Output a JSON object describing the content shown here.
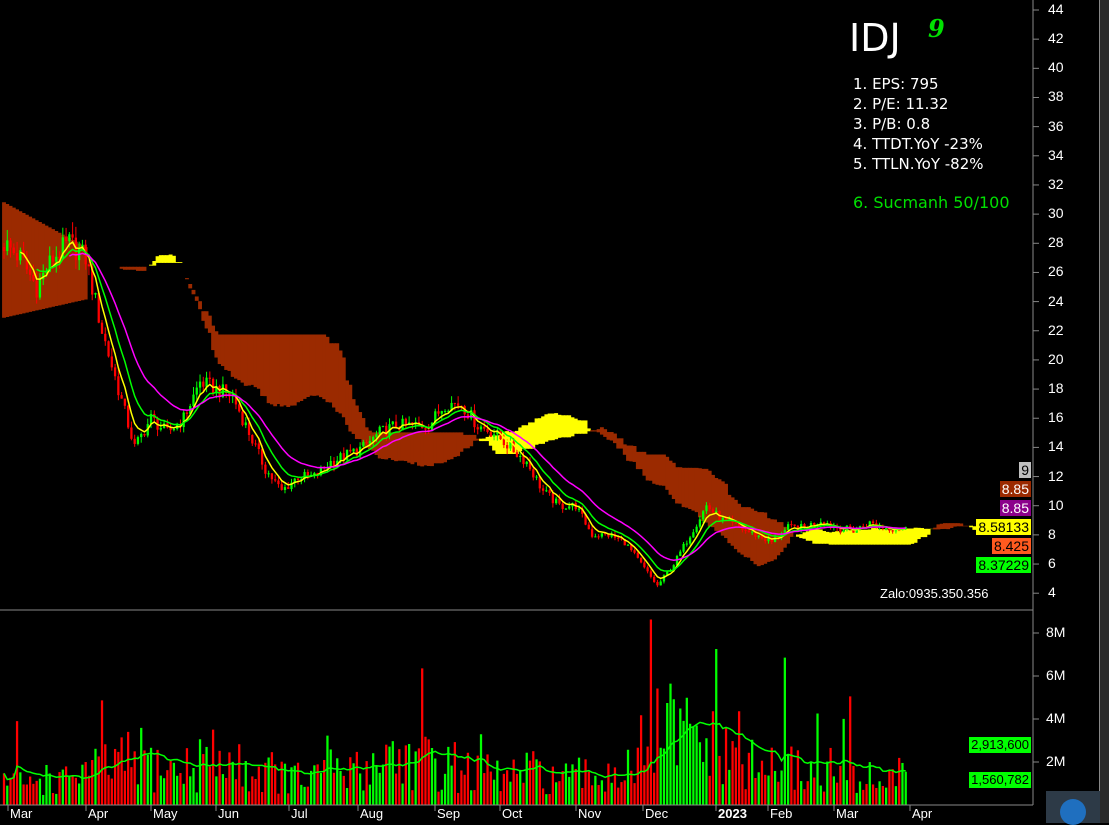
{
  "header": {
    "symbol": "IDJ",
    "symbol_badge": "9",
    "fundamentals": [
      "1. EPS: 795",
      "2. P/E: 11.32",
      "3. P/B: 0.8",
      "4. TTDT.YoY -23%",
      "5. TTLN.YoY -82%"
    ],
    "strength": "6. Sucmanh 50/100"
  },
  "watermark": "Zalo:0935.350.356",
  "colors": {
    "up": "#00ff00",
    "down": "#ff0000",
    "cloud_bear": "#9b2a00",
    "cloud_bull": "#ffff00",
    "ma_fast": "#ffff00",
    "ma_mid": "#00ff00",
    "ma_slow": "#ff00ff",
    "volume_ma": "#00ff00"
  },
  "price_axis": {
    "labels": [
      "44",
      "42",
      "40",
      "38",
      "36",
      "34",
      "32",
      "30",
      "28",
      "26",
      "24",
      "22",
      "20",
      "18",
      "16",
      "14",
      "12",
      "10",
      "8",
      "6",
      "4"
    ]
  },
  "volume_axis": {
    "labels": [
      "8M",
      "6M",
      "4M",
      "2M"
    ]
  },
  "price_tags": [
    {
      "value": "9",
      "bg": "#c0c0c0",
      "fg": "#000000"
    },
    {
      "value": "8.85",
      "bg": "#9b2a00",
      "fg": "#ffffff"
    },
    {
      "value": "8.85",
      "bg": "#8b008b",
      "fg": "#ffffff"
    },
    {
      "value": "8.58133",
      "bg": "#ffff00",
      "fg": "#000000"
    },
    {
      "value": "8.425",
      "bg": "#ff5a1f",
      "fg": "#000000"
    },
    {
      "value": "8.37229",
      "bg": "#00ff00",
      "fg": "#000000"
    }
  ],
  "volume_tags": [
    "2,913,600",
    "1,560,782"
  ],
  "date_axis": {
    "labels": [
      "Mar",
      "Apr",
      "May",
      "Jun",
      "Jul",
      "Aug",
      "Sep",
      "Oct",
      "Nov",
      "Dec",
      "2023",
      "Feb",
      "Mar",
      "Apr"
    ]
  },
  "chart_data": {
    "type": "candlestick",
    "title": "IDJ",
    "interval": "weekly closes (approx.)",
    "dates": [
      "2022-03-01",
      "2022-03-08",
      "2022-03-15",
      "2022-03-22",
      "2022-03-29",
      "2022-04-05",
      "2022-04-12",
      "2022-04-19",
      "2022-04-26",
      "2022-05-03",
      "2022-05-10",
      "2022-05-17",
      "2022-05-24",
      "2022-05-31",
      "2022-06-07",
      "2022-06-14",
      "2022-06-21",
      "2022-06-28",
      "2022-07-05",
      "2022-07-12",
      "2022-07-19",
      "2022-07-26",
      "2022-08-02",
      "2022-08-09",
      "2022-08-16",
      "2022-08-23",
      "2022-08-30",
      "2022-09-06",
      "2022-09-13",
      "2022-09-20",
      "2022-09-27",
      "2022-10-04",
      "2022-10-11",
      "2022-10-18",
      "2022-10-25",
      "2022-11-01",
      "2022-11-08",
      "2022-11-15",
      "2022-11-22",
      "2022-11-29",
      "2022-12-06",
      "2022-12-13",
      "2022-12-20",
      "2022-12-27",
      "2023-01-03",
      "2023-01-10",
      "2023-01-17",
      "2023-01-31",
      "2023-02-07",
      "2023-02-14",
      "2023-02-21",
      "2023-02-28",
      "2023-03-07",
      "2023-03-14",
      "2023-03-21",
      "2023-03-28"
    ],
    "close": [
      28,
      27,
      25,
      27,
      28,
      27,
      22,
      18,
      14,
      16,
      15,
      16,
      18.5,
      18,
      17.5,
      15,
      12.5,
      11,
      12,
      12,
      13,
      13.5,
      14,
      15,
      15.5,
      15.5,
      15.5,
      17,
      17,
      15.5,
      15,
      14,
      13,
      11,
      10,
      10,
      8,
      8,
      7.5,
      6,
      4.5,
      6,
      8,
      10,
      9,
      8.5,
      8,
      7.5,
      8.5,
      8.5,
      9,
      8.5,
      8.3,
      8.8,
      8.5,
      8.4
    ],
    "volume_m": [
      1.2,
      1.0,
      1.3,
      1.1,
      1.5,
      1.6,
      1.8,
      2.0,
      2.2,
      1.8,
      1.6,
      1.7,
      2.2,
      2.0,
      1.8,
      1.5,
      1.6,
      1.3,
      1.2,
      1.3,
      1.5,
      1.4,
      1.8,
      2.4,
      2.2,
      2.0,
      1.9,
      1.8,
      1.6,
      1.4,
      1.3,
      1.4,
      1.5,
      1.3,
      1.2,
      1.3,
      1.4,
      1.5,
      1.7,
      2.5,
      3.5,
      3.2,
      3.0,
      2.6,
      2.2,
      1.8,
      1.6,
      1.9,
      1.7,
      1.5,
      1.6,
      1.4,
      1.3,
      1.2,
      1.3,
      1.6
    ],
    "price_range": [
      4,
      44
    ],
    "volume_range_m": [
      0,
      8.5
    ],
    "indicators": [
      "Ichimoku cloud",
      "MA fast",
      "MA mid",
      "MA slow",
      "Volume MA"
    ],
    "grid": false
  }
}
